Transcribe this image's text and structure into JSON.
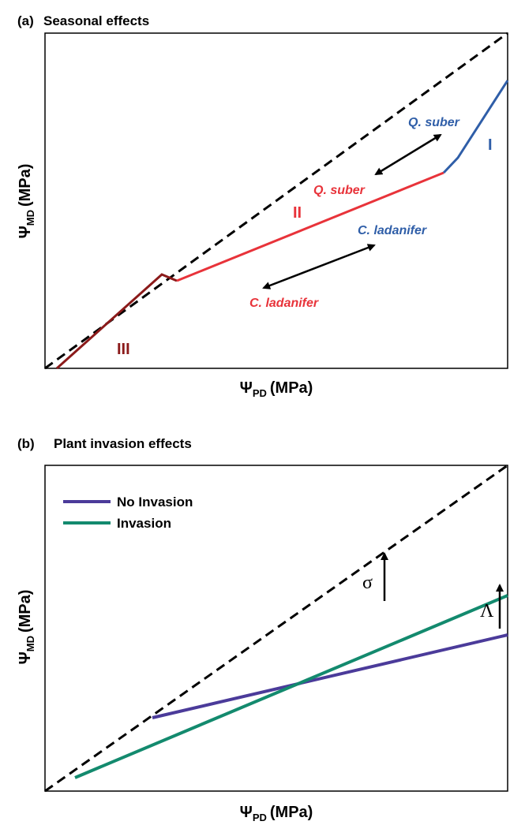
{
  "panels": [
    {
      "label": "(a)",
      "title": "Seasonal effects",
      "y_label": {
        "symbol": "Ψ",
        "sub": "MD",
        "unit": "(MPa)"
      },
      "x_label": {
        "symbol": "Ψ",
        "sub": "PD",
        "unit": "(MPa)"
      },
      "annotations": [
        "Q. suber",
        "I",
        "Q. suber",
        "II",
        "C. ladanifer",
        "C. ladanifer",
        "III"
      ]
    },
    {
      "label": "(b)",
      "title": "Plant invasion effects",
      "y_label": {
        "symbol": "Ψ",
        "sub": "MD",
        "unit": "(MPa)"
      },
      "x_label": {
        "symbol": "Ψ",
        "sub": "PD",
        "unit": "(MPa)"
      },
      "legend": [
        "No Invasion",
        "Invasion"
      ],
      "annotations": [
        "σ",
        "Λ"
      ]
    }
  ]
}
